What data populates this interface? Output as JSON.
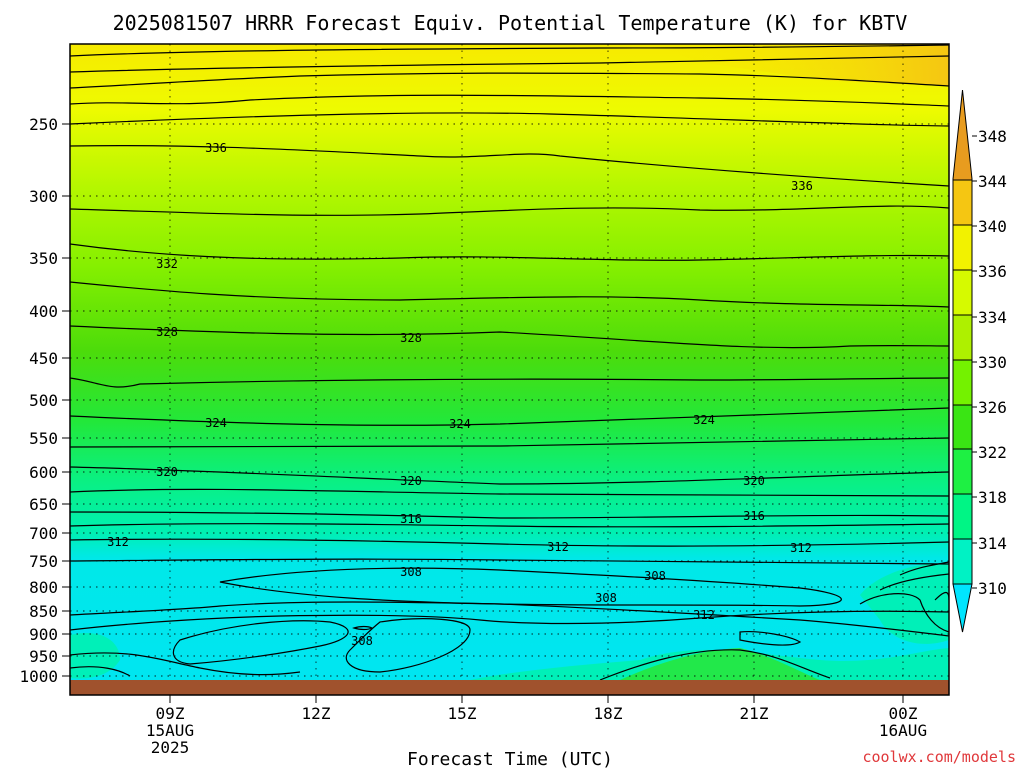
{
  "chart_data": {
    "type": "heatmap",
    "title": "2025081507 HRRR Forecast Equiv. Potential Temperature (K) for KBTV",
    "xlabel": "Forecast Time (UTC)",
    "ylabel": "",
    "credit": "coolwx.com/models",
    "x_ticks": [
      {
        "lines": [
          "09Z",
          "15AUG",
          "2025"
        ]
      },
      {
        "lines": [
          "12Z"
        ]
      },
      {
        "lines": [
          "15Z"
        ]
      },
      {
        "lines": [
          "18Z"
        ]
      },
      {
        "lines": [
          "21Z"
        ]
      },
      {
        "lines": [
          "00Z",
          "16AUG"
        ]
      }
    ],
    "y_ticks": [
      250,
      300,
      350,
      400,
      450,
      500,
      550,
      600,
      650,
      700,
      750,
      800,
      850,
      900,
      950,
      1000
    ],
    "colorbar": {
      "levels": [
        310,
        314,
        318,
        322,
        326,
        330,
        334,
        336,
        340,
        344,
        348
      ],
      "colors": {
        "below": "#00e5ff",
        "310": "#00e6f2",
        "314": "#00f2c4",
        "318": "#00f585",
        "322": "#1ef043",
        "326": "#3ae514",
        "330": "#74f200",
        "334": "#aef000",
        "336": "#d6fa00",
        "340": "#f2f200",
        "344": "#f5c612",
        "348": "#e89c1f"
      }
    },
    "contour_labels": [
      "336",
      "336",
      "332",
      "328",
      "328",
      "324",
      "324",
      "324",
      "320",
      "320",
      "320",
      "316",
      "316",
      "312",
      "312",
      "312",
      "308",
      "308",
      "308",
      "312",
      "308"
    ],
    "ground_color": "#a0522d"
  }
}
